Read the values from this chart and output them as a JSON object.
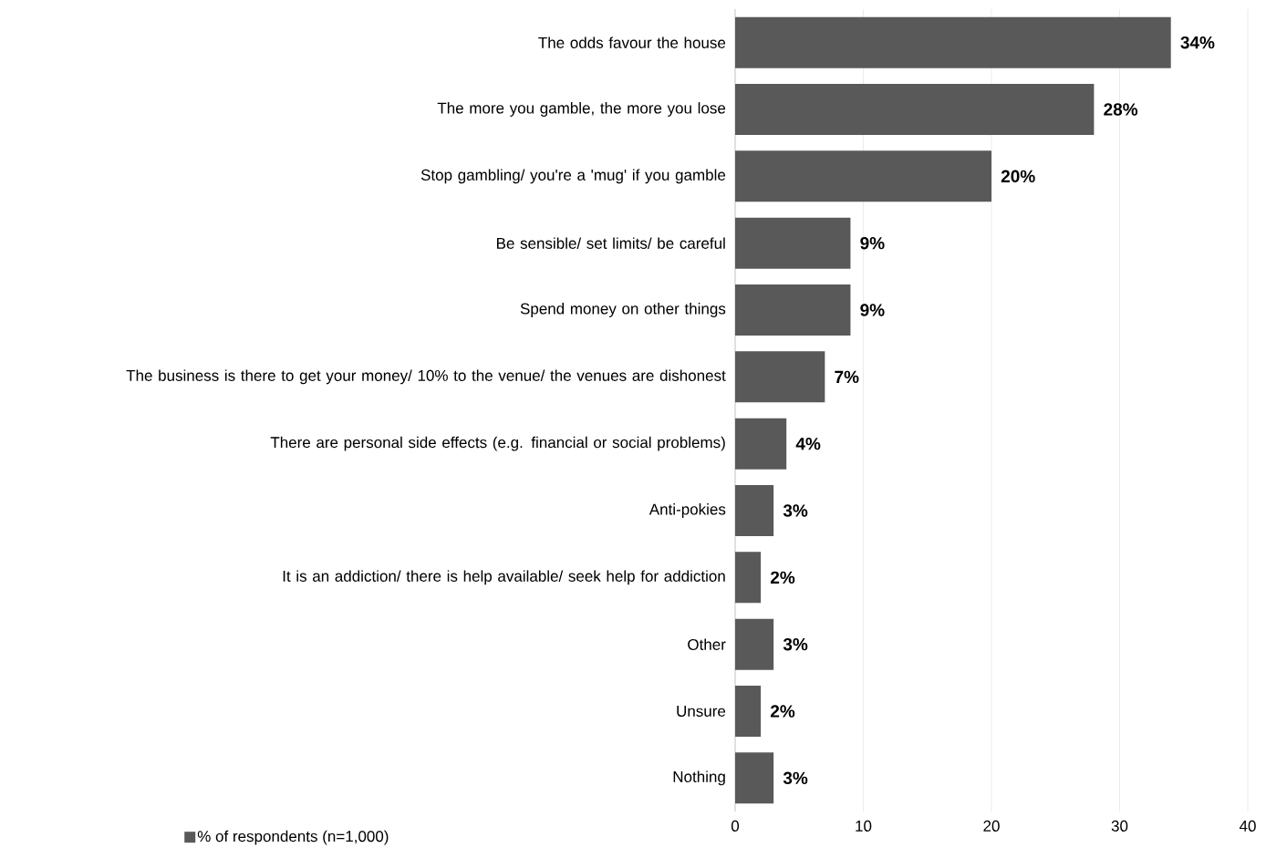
{
  "chart_data": {
    "type": "bar",
    "orientation": "horizontal",
    "categories": [
      "The odds favour the house",
      "The more you gamble, the more you lose",
      "Stop gambling/ you're a 'mug' if you gamble",
      "Be sensible/ set limits/ be careful",
      "Spend money on other things",
      "The business is there to get your money/ 10% to the venue/ the venues are dishonest",
      "There are personal side effects (e.g. financial or social problems)",
      "Anti-pokies",
      "It is an addiction/ there is help available/ seek help for addiction",
      "Other",
      "Unsure",
      "Nothing"
    ],
    "series": [
      {
        "name": "% of respondents (n=1,000)",
        "color": "#595959",
        "values": [
          34,
          28,
          20,
          9,
          9,
          7,
          4,
          3,
          2,
          3,
          2,
          3
        ],
        "value_labels": [
          "34%",
          "28%",
          "20%",
          "9%",
          "9%",
          "7%",
          "4%",
          "3%",
          "2%",
          "3%",
          "2%",
          "3%"
        ]
      }
    ],
    "xlim": [
      0,
      40
    ],
    "xticks": [
      0,
      10,
      20,
      30,
      40
    ],
    "grid": "x",
    "legend": "bottom left"
  }
}
